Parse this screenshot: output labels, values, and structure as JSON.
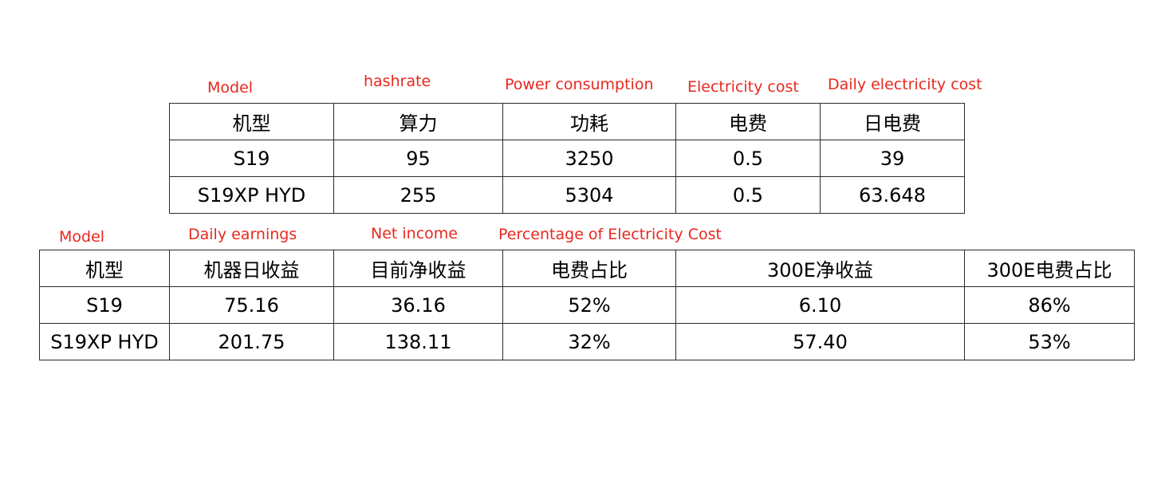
{
  "table1": {
    "annotations": [
      "Model",
      "hashrate",
      "Power consumption",
      "Electricity cost",
      "Daily electricity cost"
    ],
    "headers": [
      "机型",
      "算力",
      "功耗",
      "电费",
      "日电费"
    ],
    "rows": [
      [
        "S19",
        "95",
        "3250",
        "0.5",
        "39"
      ],
      [
        "S19XP HYD",
        "255",
        "5304",
        "0.5",
        "63.648"
      ]
    ]
  },
  "table2": {
    "annotations": [
      "Model",
      "Daily earnings",
      "Net income",
      "Percentage of Electricity Cost"
    ],
    "headers": [
      "机型",
      "机器日收益",
      "目前净收益",
      "电费占比",
      "300E净收益",
      "300E电费占比"
    ],
    "rows": [
      [
        "S19",
        "75.16",
        "36.16",
        "52%",
        "6.10",
        "86%"
      ],
      [
        "S19XP HYD",
        "201.75",
        "138.11",
        "32%",
        "57.40",
        "53%"
      ]
    ]
  },
  "colors": {
    "annotation": "#e8281e",
    "text": "#000000",
    "border": "#2a2a2a"
  }
}
